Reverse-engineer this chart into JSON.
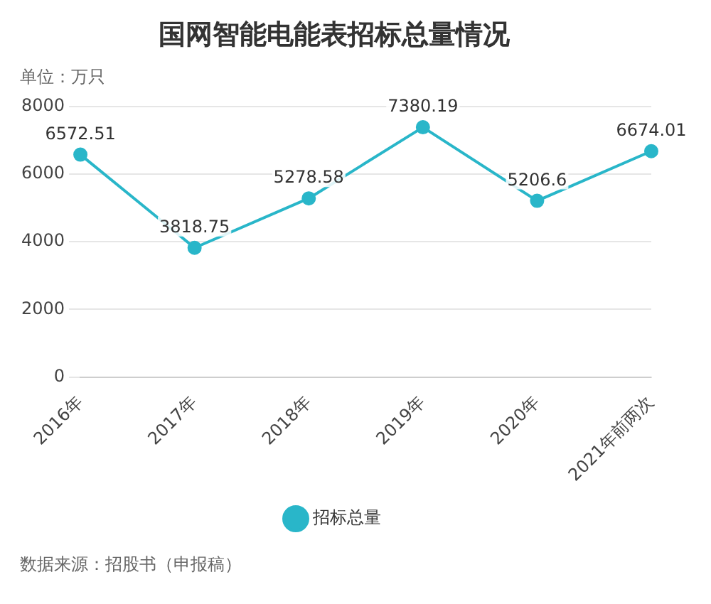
{
  "chart_data": {
    "type": "line",
    "title": "国网智能电能表招标总量情况",
    "ylabel": "单位：万只",
    "categories": [
      "2016年",
      "2017年",
      "2018年",
      "2019年",
      "2020年",
      "2021年前两次"
    ],
    "series": [
      {
        "name": "招标总量",
        "color": "#29b6c9",
        "values": [
          6572.51,
          3818.75,
          5278.58,
          7380.19,
          5206.6,
          6674.01
        ]
      }
    ],
    "ylim": [
      0,
      8000
    ],
    "yticks": [
      0,
      2000,
      4000,
      6000,
      8000
    ],
    "grid": "y",
    "legend": "bottom",
    "marker": "circle",
    "line_style": "solid",
    "data_labels": true,
    "annotations": [
      "数据来源：招股书（申报稿）"
    ]
  }
}
